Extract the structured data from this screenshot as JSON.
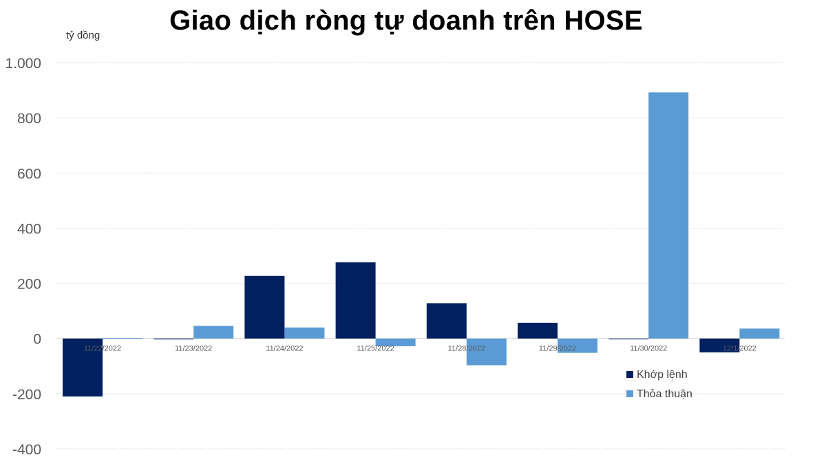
{
  "chart_data": {
    "type": "bar",
    "title": "Giao dịch ròng tự doanh trên HOSE",
    "ylabel": "tỷ đồng",
    "xlabel": "",
    "categories": [
      "11/22/2022",
      "11/23/2022",
      "11/24/2022",
      "11/25/2022",
      "11/28/2022",
      "11/29/2022",
      "11/30/2022",
      "12/1/2022"
    ],
    "series": [
      {
        "name": "Khớp lệnh",
        "color": "#002060",
        "values": [
          -210,
          -3,
          227,
          276,
          128,
          57,
          0,
          -50
        ]
      },
      {
        "name": "Thỏa thuận",
        "color": "#5B9BD5",
        "values": [
          2,
          46,
          40,
          -28,
          -97,
          -52,
          892,
          36
        ]
      }
    ],
    "ylim": [
      -400,
      1000
    ],
    "yticks": [
      1000,
      800,
      600,
      400,
      200,
      0,
      -200,
      -400
    ],
    "ytick_labels": [
      "1.000",
      "800",
      "600",
      "400",
      "200",
      "0",
      "-200",
      "-400"
    ],
    "grid": true,
    "legend": "bottom-right"
  }
}
